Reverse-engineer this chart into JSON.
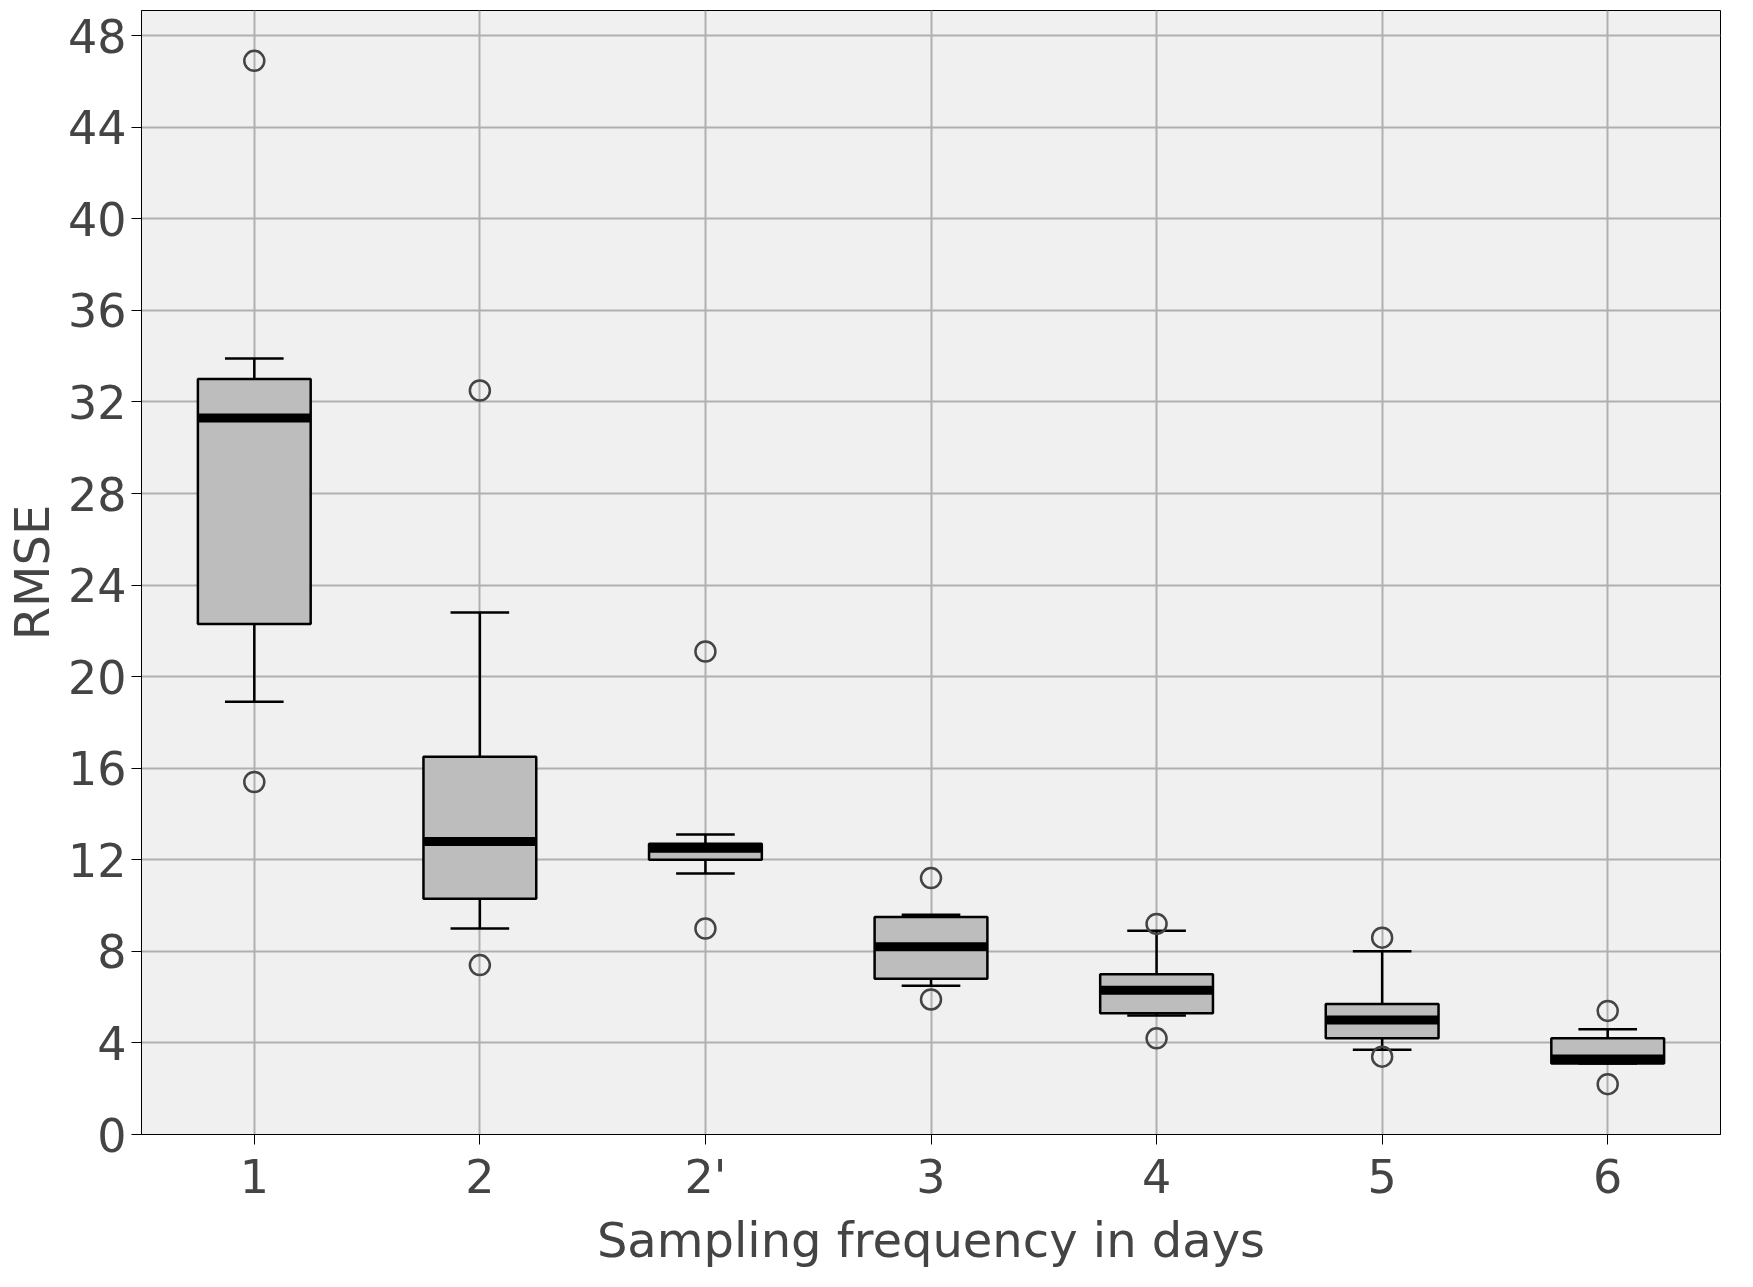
{
  "chart_data": {
    "type": "box",
    "xlabel": "Sampling frequency in days",
    "ylabel": "RMSE",
    "categories": [
      "1",
      "2",
      "2'",
      "3",
      "4",
      "5",
      "6"
    ],
    "boxes": [
      {
        "low": 18.9,
        "q1": 22.3,
        "median": 31.3,
        "q3": 33.0,
        "high": 33.9,
        "outliers": [
          46.9,
          15.4
        ]
      },
      {
        "low": 9.0,
        "q1": 10.3,
        "median": 12.8,
        "q3": 16.5,
        "high": 22.8,
        "outliers": [
          32.5,
          7.4
        ]
      },
      {
        "low": 11.4,
        "q1": 12.0,
        "median": 12.5,
        "q3": 12.7,
        "high": 13.1,
        "outliers": [
          21.1,
          9.0
        ]
      },
      {
        "low": 6.5,
        "q1": 6.8,
        "median": 8.2,
        "q3": 9.5,
        "high": 9.6,
        "outliers": [
          11.2,
          5.9
        ]
      },
      {
        "low": 5.2,
        "q1": 5.3,
        "median": 6.3,
        "q3": 7.0,
        "high": 8.9,
        "outliers": [
          9.2,
          4.2
        ]
      },
      {
        "low": 3.7,
        "q1": 4.2,
        "median": 5.0,
        "q3": 5.7,
        "high": 8.0,
        "outliers": [
          8.6,
          3.4
        ]
      },
      {
        "low": 3.1,
        "q1": 3.1,
        "median": 3.3,
        "q3": 4.2,
        "high": 4.6,
        "outliers": [
          5.4,
          2.2
        ]
      }
    ],
    "color": "#bdbdbd",
    "ylim": [
      0,
      49.1
    ],
    "yticks": [
      0,
      4,
      8,
      12,
      16,
      20,
      24,
      28,
      32,
      36,
      40,
      44,
      48
    ],
    "grid": true
  }
}
